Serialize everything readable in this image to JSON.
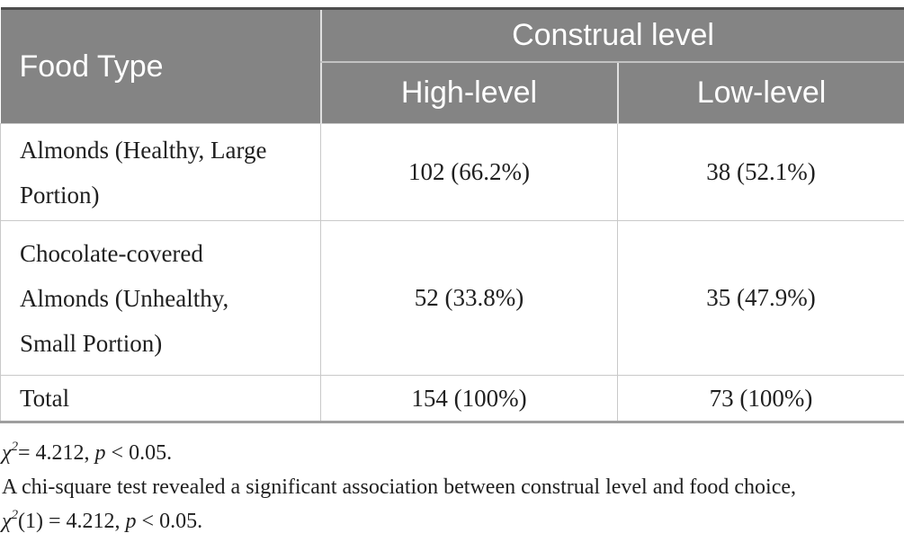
{
  "table": {
    "header": {
      "food_type": "Food Type",
      "construal": "Construal level",
      "high": "High-level",
      "low": "Low-level"
    },
    "rows": [
      {
        "label": "Almonds (Healthy, Large\nPortion)",
        "high": "102 (66.2%)",
        "low": "38 (52.1%)"
      },
      {
        "label": "Chocolate-covered\nAlmonds (Unhealthy,\nSmall Portion)",
        "high": "52 (33.8%)",
        "low": "35 (47.9%)"
      },
      {
        "label": "Total",
        "high": "154 (100%)",
        "low": "73 (100%)"
      }
    ]
  },
  "footnotes": {
    "line1": {
      "chi": "χ",
      "sup": "2",
      "mid": "= 4.212, ",
      "p": "p",
      "tail": " < 0.05."
    },
    "line2": "A chi-square test revealed a significant association between construal level and food choice,",
    "line3": {
      "chi": "χ",
      "sup": "2",
      "mid": "(1) = 4.212, ",
      "p": "p",
      "tail": " < 0.05."
    }
  },
  "colors": {
    "header_background": "#848484",
    "header_text": "#ffffff",
    "top_border": "#4d4d4d",
    "bottom_border": "#9e9e9e",
    "cell_border": "#c9c9c9",
    "body_text": "#1f1f1f"
  }
}
